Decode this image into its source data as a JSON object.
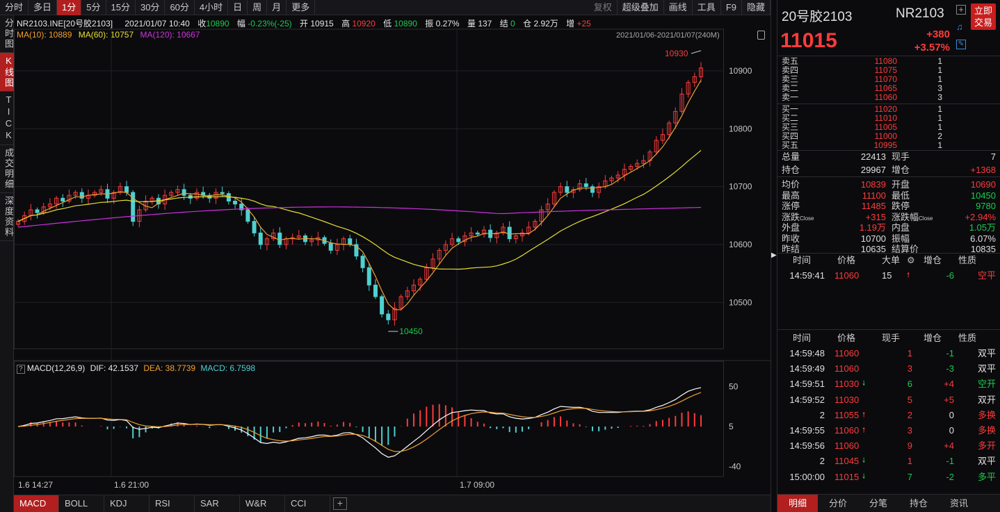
{
  "toolbar": {
    "periods": [
      "分时",
      "多日",
      "1分",
      "5分",
      "15分",
      "30分",
      "60分",
      "4小时",
      "日",
      "周",
      "月",
      "更多"
    ],
    "active_index": 2,
    "tools": [
      "复权",
      "超级叠加",
      "画线",
      "工具",
      "F9",
      "隐藏"
    ]
  },
  "left_tabs": [
    "分时图",
    "K线图",
    "TICK",
    "成交明细",
    "深度资料"
  ],
  "left_active": 1,
  "info": {
    "symbol": "NR2103.INE[20号胶2103]",
    "datetime": "2021/01/07 10:40",
    "close_label": "收",
    "close": "10890",
    "amp_label": "幅",
    "amp": "-0.23%(-25)",
    "open_label": "开",
    "open": "10915",
    "high_label": "高",
    "high": "10920",
    "low_label": "低",
    "low": "10890",
    "swing_label": "振",
    "swing": "0.27%",
    "vol_label": "量",
    "vol": "137",
    "settle_label": "结",
    "settle": "0",
    "oi_label": "仓",
    "oi": "2.92万",
    "oichg_label": "增",
    "oichg": "+25"
  },
  "ma": {
    "ma10": "MA(10): 10889",
    "ma60": "MA(60): 10757",
    "ma120": "MA(120): 10667",
    "range": "2021/01/06-2021/01/07(240M)"
  },
  "chart_data": {
    "type": "candlestick",
    "y_ticks": [
      10900,
      10800,
      10700,
      10600,
      10500
    ],
    "high_marker": "10930",
    "low_marker": "10450",
    "x_labels": [
      "1.6 14:27",
      "1.6 21:00",
      "1.7 09:00"
    ],
    "macd_legend": {
      "name": "MACD(12,26,9)",
      "dif": "DIF: 42.1537",
      "dea": "DEA: 38.7739",
      "macd": "MACD: 6.7598"
    },
    "macd_ticks": [
      50,
      5,
      -40
    ],
    "close_path": [
      10640,
      10650,
      10660,
      10655,
      10665,
      10670,
      10680,
      10675,
      10685,
      10690,
      10680,
      10685,
      10690,
      10695,
      10680,
      10690,
      10700,
      10690,
      10640,
      10660,
      10675,
      10680,
      10670,
      10685,
      10690,
      10695,
      10685,
      10680,
      10690,
      10685,
      10680,
      10690,
      10688,
      10675,
      10670,
      10660,
      10640,
      10620,
      10600,
      10610,
      10620,
      10600,
      10610,
      10612,
      10615,
      10605,
      10608,
      10612,
      10602,
      10590,
      10600,
      10610,
      10600,
      10580,
      10560,
      10530,
      10510,
      10480,
      10470,
      10490,
      10510,
      10520,
      10530,
      10540,
      10560,
      10575,
      10590,
      10600,
      10610,
      10605,
      10615,
      10620,
      10618,
      10625,
      10612,
      10620,
      10630,
      10610,
      10615,
      10620,
      10630,
      10640,
      10660,
      10670,
      10690,
      10700,
      10690,
      10695,
      10705,
      10700,
      10690,
      10700,
      10710,
      10715,
      10720,
      10730,
      10735,
      10740,
      10745,
      10760,
      10780,
      10790,
      10810,
      10830,
      10860,
      10880,
      10890,
      10905
    ]
  },
  "bottom_ind_tabs": [
    "MACD",
    "BOLL",
    "KDJ",
    "RSI",
    "SAR",
    "W&R",
    "CCI"
  ],
  "right": {
    "name": "20号胶2103",
    "code": "NR2103",
    "price": "11015",
    "change": "+380",
    "change_pct": "+3.57%",
    "trade_btn": "立即交易",
    "asks": [
      {
        "label": "卖五",
        "price": "11080",
        "vol": "1"
      },
      {
        "label": "卖四",
        "price": "11075",
        "vol": "1"
      },
      {
        "label": "卖三",
        "price": "11070",
        "vol": "1"
      },
      {
        "label": "卖二",
        "price": "11065",
        "vol": "3"
      },
      {
        "label": "卖一",
        "price": "11060",
        "vol": "3"
      }
    ],
    "bids": [
      {
        "label": "买一",
        "price": "11020",
        "vol": "1"
      },
      {
        "label": "买二",
        "price": "11010",
        "vol": "1"
      },
      {
        "label": "买三",
        "price": "11005",
        "vol": "1"
      },
      {
        "label": "买四",
        "price": "11000",
        "vol": "2"
      },
      {
        "label": "买五",
        "price": "10995",
        "vol": "1"
      }
    ],
    "stats1": [
      {
        "l": "总量",
        "v": "22413",
        "vc": "white",
        "l2": "现手",
        "v2": "7",
        "v2c": "white"
      },
      {
        "l": "持仓",
        "v": "29967",
        "vc": "white",
        "l2": "增仓",
        "v2": "+1368",
        "v2c": "red"
      }
    ],
    "stats2": [
      {
        "l": "均价",
        "v": "10839",
        "vc": "red",
        "l2": "开盘",
        "v2": "10690",
        "v2c": "red"
      },
      {
        "l": "最高",
        "v": "11100",
        "vc": "red",
        "l2": "最低",
        "v2": "10450",
        "v2c": "green"
      },
      {
        "l": "涨停",
        "v": "11485",
        "vc": "red",
        "l2": "跌停",
        "v2": "9780",
        "v2c": "green"
      },
      {
        "l": "涨跌",
        "sub": "Close",
        "v": "+315",
        "vc": "red",
        "l2": "涨跌幅",
        "sub2": "Close",
        "v2": "+2.94%",
        "v2c": "red"
      },
      {
        "l": "外盘",
        "v": "1.19万",
        "vc": "red",
        "l2": "内盘",
        "v2": "1.05万",
        "v2c": "green"
      },
      {
        "l": "昨收",
        "v": "10700",
        "vc": "white",
        "l2": "振幅",
        "v2": "6.07%",
        "v2c": "white"
      },
      {
        "l": "昨结",
        "v": "10635",
        "vc": "white",
        "l2": "结算价",
        "v2": "10835",
        "v2c": "white"
      }
    ],
    "big_header": [
      "时间",
      "价格",
      "大单",
      "增仓",
      "性质"
    ],
    "big_rows": [
      {
        "t": "14:59:41",
        "p": "11060",
        "q": "15",
        "arrow": "up",
        "c": "-6",
        "k": "空平",
        "kc": "red"
      }
    ],
    "trades_header": [
      "时间",
      "价格",
      "现手",
      "增仓",
      "性质"
    ],
    "trades": [
      {
        "t": "14:59:48",
        "p": "11060",
        "pa": "",
        "q": "1",
        "c": "-1",
        "k": "双平",
        "kc": "white"
      },
      {
        "t": "14:59:49",
        "p": "11060",
        "pa": "",
        "q": "3",
        "c": "-3",
        "k": "双平",
        "kc": "white"
      },
      {
        "t": "14:59:51",
        "p": "11030",
        "pa": "down",
        "q": "6",
        "c": "+4",
        "k": "空开",
        "kc": "green"
      },
      {
        "t": "14:59:52",
        "p": "11030",
        "pa": "",
        "q": "5",
        "c": "+5",
        "k": "双开",
        "kc": "white"
      },
      {
        "t": "2",
        "p": "11055",
        "pa": "up",
        "q": "2",
        "c": "0",
        "k": "多换",
        "kc": "red"
      },
      {
        "t": "14:59:55",
        "p": "11060",
        "pa": "up",
        "q": "3",
        "c": "0",
        "k": "多换",
        "kc": "red"
      },
      {
        "t": "14:59:56",
        "p": "11060",
        "pa": "",
        "q": "9",
        "c": "+4",
        "k": "多开",
        "kc": "red"
      },
      {
        "t": "2",
        "p": "11045",
        "pa": "down",
        "q": "1",
        "c": "-1",
        "k": "双平",
        "kc": "white"
      },
      {
        "t": "15:00:00",
        "p": "11015",
        "pa": "down",
        "q": "7",
        "c": "-2",
        "k": "多平",
        "kc": "green"
      }
    ],
    "bottom_tabs": [
      "明细",
      "分价",
      "分笔",
      "持仓",
      "资讯"
    ],
    "bottom_active": 0
  },
  "colors": {
    "up": "#ff3b3b",
    "down": "#1ec94f",
    "ma10": "#f0a030",
    "ma60": "#e8e030",
    "ma120": "#d030e0",
    "dif": "#ffffff",
    "dea": "#f0a030",
    "active": "#b21f1f"
  }
}
